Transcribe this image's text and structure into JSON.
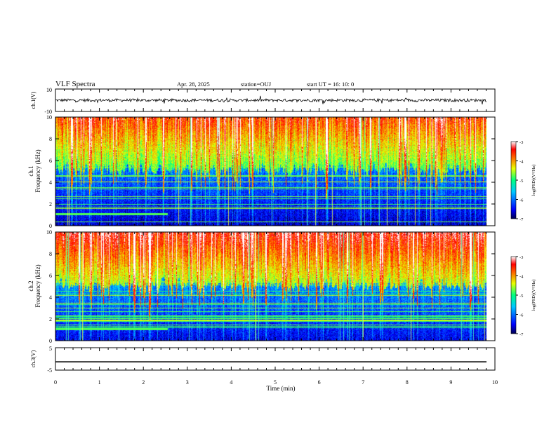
{
  "header": {
    "title": "VLF Spectra",
    "date": "Apr. 28, 2025",
    "station": "station=OUJ",
    "start_ut": "start  UT =  16: 10: 0"
  },
  "chart_data": [
    {
      "type": "line",
      "panel": "ch1-waveform",
      "ylabel": "ch.1(V)",
      "ylim": [
        -10,
        10
      ],
      "yticks": [
        "10",
        "-10"
      ],
      "xlim": [
        0,
        10
      ],
      "description_level": 0
    },
    {
      "type": "heatmap",
      "panel": "ch1-spectrogram",
      "ylabel": "ch.1\nFrequency (kHz)",
      "ylim": [
        0,
        10
      ],
      "yticks": [
        "0",
        "2",
        "4",
        "6",
        "8",
        "10"
      ],
      "xlim": [
        0,
        10
      ],
      "colorbar": {
        "label": "log(PSD)(V²/Hz)",
        "range": [
          -7,
          -3
        ],
        "ticks": [
          "-3",
          "-4",
          "-5",
          "-6",
          "-7"
        ]
      }
    },
    {
      "type": "heatmap",
      "panel": "ch2-spectrogram",
      "ylabel": "ch.2\nFrequency (kHz)",
      "ylim": [
        0,
        10
      ],
      "yticks": [
        "0",
        "2",
        "4",
        "6",
        "8",
        "10"
      ],
      "xlim": [
        0,
        10
      ],
      "colorbar": {
        "label": "log(PSD)(V²/Hz)",
        "range": [
          -7,
          -3
        ],
        "ticks": [
          "-3",
          "-4",
          "-5",
          "-6",
          "-7"
        ]
      }
    },
    {
      "type": "line",
      "panel": "ch3-waveform",
      "ylabel": "ch.3(V)",
      "ylim": [
        -5,
        5
      ],
      "yticks": [
        "5",
        "-5"
      ],
      "xlim": [
        0,
        10
      ],
      "values_level": -1.3
    }
  ],
  "xaxis": {
    "label": "Time (min)",
    "ticks": [
      "0",
      "1",
      "2",
      "3",
      "4",
      "5",
      "6",
      "7",
      "8",
      "9",
      "10"
    ]
  },
  "colors": {
    "spectrum_stops": [
      "#000060",
      "#0000ff",
      "#00c0ff",
      "#00ff80",
      "#ffff00",
      "#ff8000",
      "#ff0000",
      "#ffffff"
    ]
  }
}
